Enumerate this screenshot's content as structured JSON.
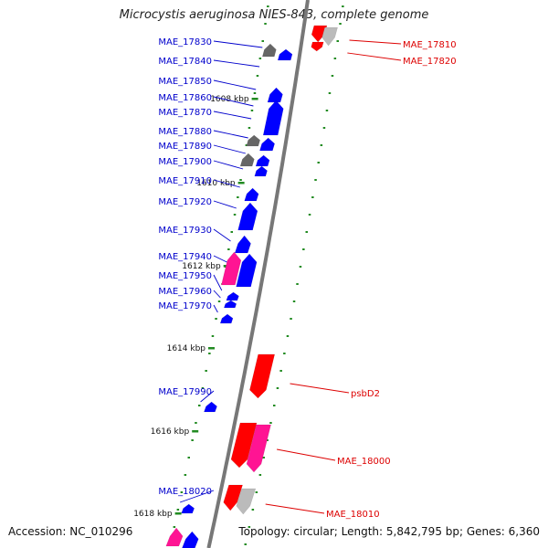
{
  "title": "Microcystis aeruginosa NIES-843, complete genome",
  "accession": "Accession: NC_010296",
  "topology": "Topology: circular; Length: 5,842,795 bp; Genes: 6,360",
  "colors": {
    "minus_label": "#0000cc",
    "plus_label": "#dd0000",
    "minus_gene": "#0000ff",
    "plus_gene": "#ff0000",
    "pink_gene": "#ff1493",
    "gray_gene": "#666666",
    "lightgray_gene": "#bbbbbb",
    "tick": "#228b22",
    "backbone": "#777777"
  },
  "ticks": [
    {
      "label": "1608 kbp"
    },
    {
      "label": "1610 kbp"
    },
    {
      "label": "1612 kbp"
    },
    {
      "label": "1614 kbp"
    },
    {
      "label": "1616 kbp"
    },
    {
      "label": "1618 kbp"
    }
  ],
  "minus_labels": [
    "MAE_17830",
    "MAE_17840",
    "MAE_17850",
    "MAE_17860",
    "MAE_17870",
    "MAE_17880",
    "MAE_17890",
    "MAE_17900",
    "MAE_17910",
    "MAE_17920",
    "MAE_17930",
    "MAE_17940",
    "MAE_17950",
    "MAE_17960",
    "MAE_17970",
    "MAE_17990",
    "MAE_18020"
  ],
  "plus_labels": [
    "MAE_17810",
    "MAE_17820",
    "psbD2",
    "MAE_18000",
    "MAE_18010"
  ]
}
